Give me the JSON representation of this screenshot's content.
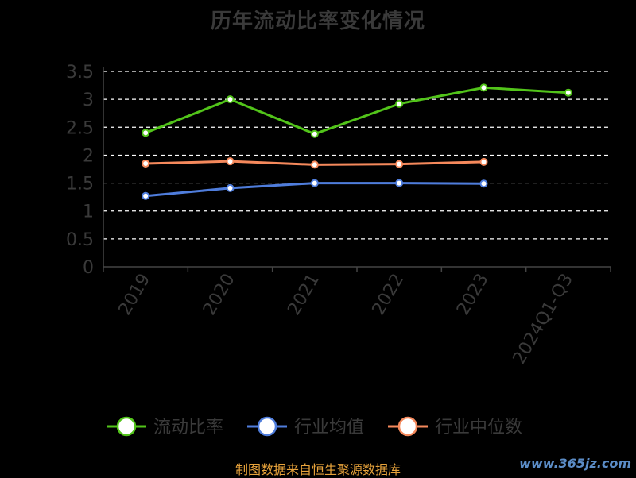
{
  "chart_data": {
    "type": "line",
    "title": "历年流动比率变化情况",
    "categories": [
      "2019",
      "2020",
      "2021",
      "2022",
      "2023",
      "2024Q1-Q3"
    ],
    "ylim": [
      0,
      3.5
    ],
    "yticks": [
      "0",
      "0.5",
      "1",
      "1.5",
      "2",
      "2.5",
      "3",
      "3.5"
    ],
    "grid": true,
    "legend_position": "bottom",
    "series": [
      {
        "name": "流动比率",
        "color": "#52c41a",
        "values": [
          2.4,
          3.0,
          2.38,
          2.92,
          3.21,
          3.12
        ]
      },
      {
        "name": "行业均值",
        "color": "#4f7ddc",
        "values": [
          1.27,
          1.41,
          1.5,
          1.5,
          1.49,
          null
        ]
      },
      {
        "name": "行业中位数",
        "color": "#f5895c",
        "values": [
          1.85,
          1.89,
          1.83,
          1.84,
          1.88,
          null
        ]
      }
    ]
  },
  "footer": {
    "source": "制图数据来自恒生聚源数据库",
    "watermark": "www.365jz.com"
  }
}
